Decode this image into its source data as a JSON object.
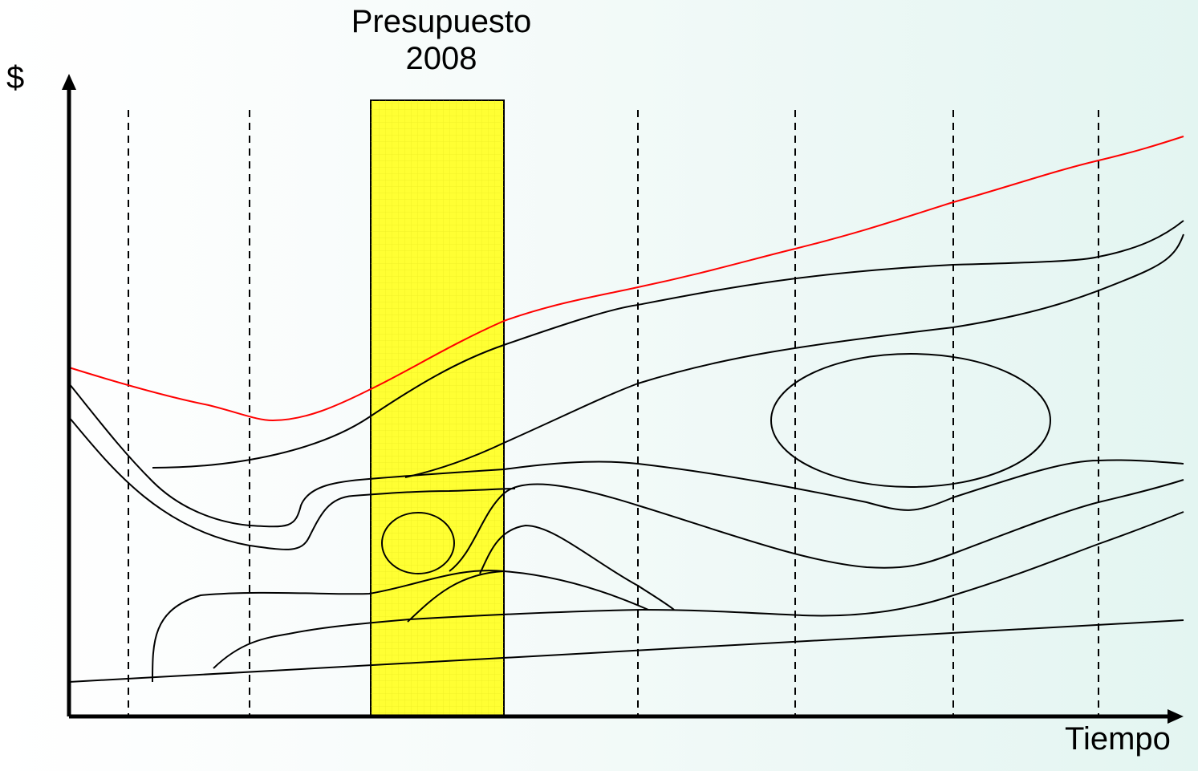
{
  "diagram": {
    "y_axis_label": "$",
    "x_axis_label": "Tiempo",
    "highlight": {
      "line1": "Presupuesto",
      "line2": "2008",
      "color": "#ffff33"
    },
    "colors": {
      "upper_bound_line": "#ff0000",
      "curves": "#000000"
    }
  }
}
